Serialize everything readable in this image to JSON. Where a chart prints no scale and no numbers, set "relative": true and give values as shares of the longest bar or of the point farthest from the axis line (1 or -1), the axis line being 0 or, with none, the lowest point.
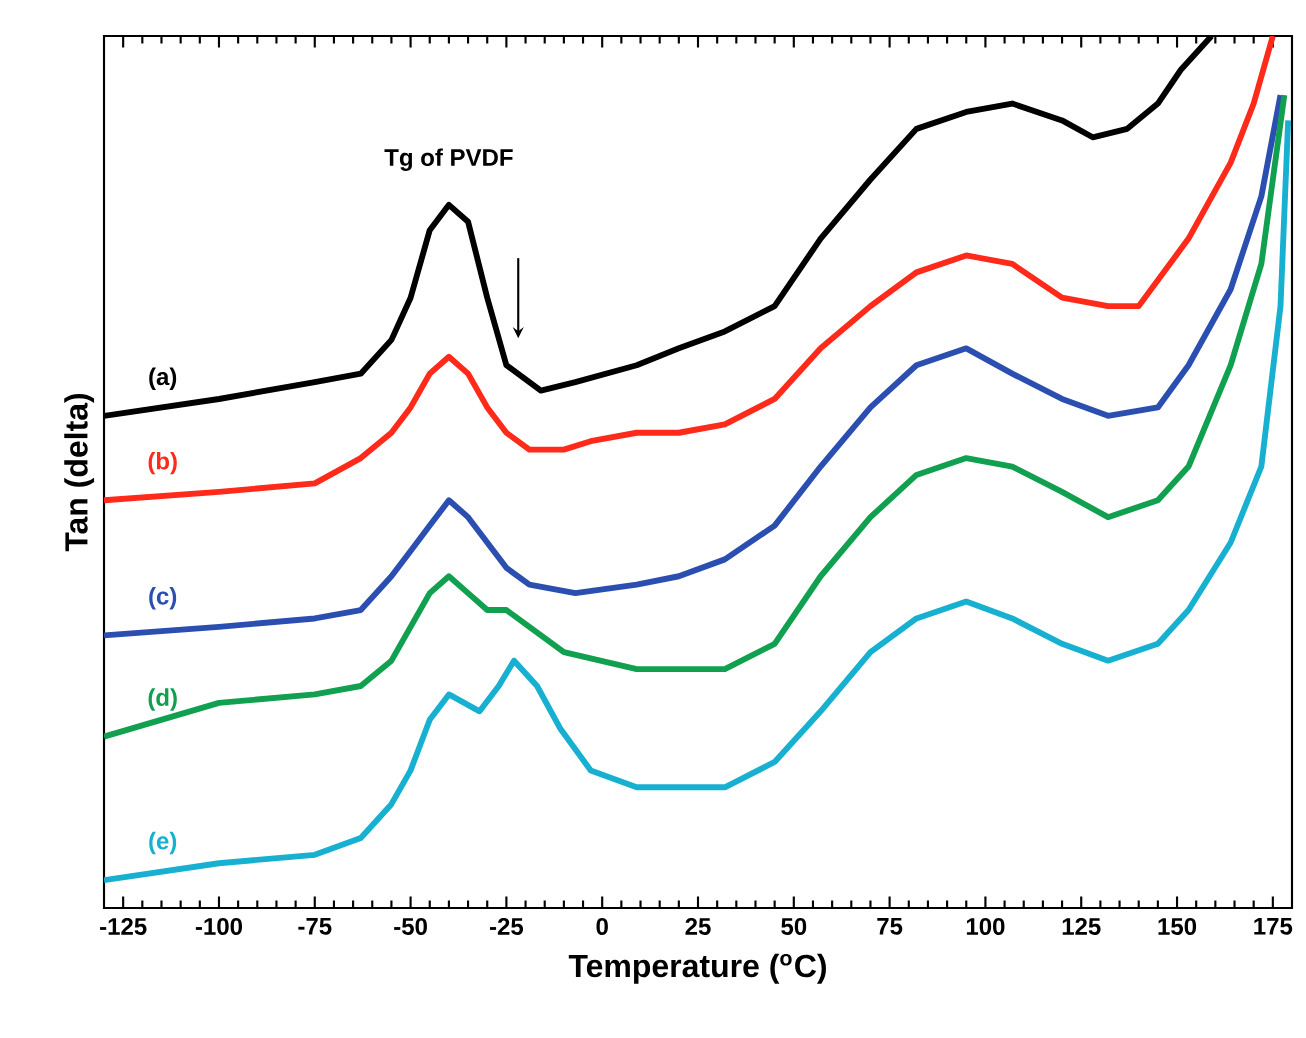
{
  "chart_data": {
    "type": "line",
    "relative": true,
    "xlabel": "Temperature ($^{o}$C)",
    "ylabel": "Tan (delta)",
    "xlim": [
      -130,
      180
    ],
    "xticks": [
      -125,
      -100,
      -75,
      -50,
      -25,
      0,
      25,
      50,
      75,
      100,
      125,
      150,
      175
    ],
    "annotations": [
      {
        "text": "Tg of PVDF",
        "x": -40,
        "y": 0.8
      }
    ],
    "series": [
      {
        "name": "(a)",
        "color": "#000000",
        "x": [
          -130,
          -100,
          -75,
          -63,
          -55,
          -50,
          -45,
          -40,
          -35,
          -30,
          -25,
          -22,
          -16,
          -7,
          9,
          20,
          32,
          45,
          57,
          70,
          82,
          95,
          107,
          120,
          128,
          137,
          145,
          151,
          159
        ],
        "values": [
          0.55,
          0.57,
          0.59,
          0.6,
          0.64,
          0.69,
          0.77,
          0.8,
          0.78,
          0.69,
          0.61,
          0.6,
          0.58,
          0.59,
          0.61,
          0.63,
          0.65,
          0.68,
          0.76,
          0.83,
          0.89,
          0.91,
          0.92,
          0.9,
          0.88,
          0.89,
          0.92,
          0.96,
          1.0
        ]
      },
      {
        "name": "(b)",
        "color": "#ff2a1a",
        "x": [
          -130,
          -100,
          -75,
          -63,
          -55,
          -50,
          -45,
          -40,
          -35,
          -30,
          -25,
          -19,
          -10,
          -3,
          9,
          20,
          32,
          45,
          57,
          70,
          82,
          95,
          107,
          120,
          132,
          140,
          153,
          164,
          170,
          175
        ],
        "values": [
          0.45,
          0.46,
          0.47,
          0.5,
          0.53,
          0.56,
          0.6,
          0.62,
          0.6,
          0.56,
          0.53,
          0.51,
          0.51,
          0.52,
          0.53,
          0.53,
          0.54,
          0.57,
          0.63,
          0.68,
          0.72,
          0.74,
          0.73,
          0.69,
          0.68,
          0.68,
          0.76,
          0.85,
          0.92,
          1.0
        ]
      },
      {
        "name": "(c)",
        "color": "#2a4fb0",
        "x": [
          -130,
          -100,
          -75,
          -63,
          -55,
          -50,
          -45,
          -40,
          -35,
          -30,
          -25,
          -19,
          -7,
          9,
          20,
          32,
          45,
          57,
          70,
          82,
          95,
          107,
          120,
          132,
          145,
          153,
          164,
          172,
          177
        ],
        "values": [
          0.29,
          0.3,
          0.31,
          0.32,
          0.36,
          0.39,
          0.42,
          0.45,
          0.43,
          0.4,
          0.37,
          0.35,
          0.34,
          0.35,
          0.36,
          0.38,
          0.42,
          0.49,
          0.56,
          0.61,
          0.63,
          0.6,
          0.57,
          0.55,
          0.56,
          0.61,
          0.7,
          0.81,
          0.93
        ]
      },
      {
        "name": "(d)",
        "color": "#10a050",
        "x": [
          -130,
          -100,
          -75,
          -63,
          -55,
          -50,
          -45,
          -40,
          -35,
          -30,
          -25,
          -19,
          -10,
          9,
          20,
          32,
          45,
          57,
          70,
          82,
          95,
          107,
          120,
          132,
          145,
          153,
          164,
          172,
          178
        ],
        "values": [
          0.17,
          0.21,
          0.22,
          0.23,
          0.26,
          0.3,
          0.34,
          0.36,
          0.34,
          0.32,
          0.32,
          0.3,
          0.27,
          0.25,
          0.25,
          0.25,
          0.28,
          0.36,
          0.43,
          0.48,
          0.5,
          0.49,
          0.46,
          0.43,
          0.45,
          0.49,
          0.61,
          0.73,
          0.93
        ]
      },
      {
        "name": "(e)",
        "color": "#18b0d0",
        "x": [
          -130,
          -100,
          -75,
          -63,
          -55,
          -50,
          -45,
          -40,
          -32,
          -27,
          -23,
          -17,
          -11,
          -3,
          9,
          20,
          32,
          45,
          57,
          70,
          82,
          95,
          107,
          120,
          132,
          145,
          153,
          164,
          172,
          177,
          179
        ],
        "values": [
          0,
          0.02,
          0.03,
          0.05,
          0.09,
          0.13,
          0.19,
          0.22,
          0.2,
          0.23,
          0.26,
          0.23,
          0.18,
          0.13,
          0.11,
          0.11,
          0.11,
          0.14,
          0.2,
          0.27,
          0.31,
          0.33,
          0.31,
          0.28,
          0.26,
          0.28,
          0.32,
          0.4,
          0.49,
          0.68,
          0.9
        ]
      }
    ]
  }
}
